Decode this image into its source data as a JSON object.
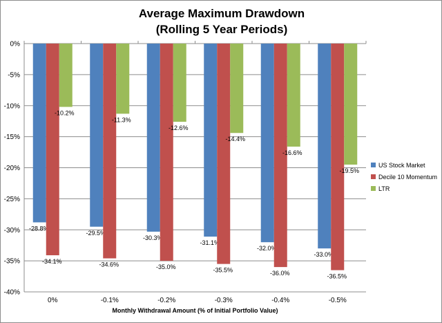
{
  "chart_data": {
    "type": "bar",
    "title": "Average Maximum Drawdown",
    "subtitle": "(Rolling 5 Year Periods)",
    "xlabel": "Monthly Withdrawal Amount (% of Initial Portfolio Value)",
    "ylabel": "",
    "categories": [
      "0%",
      "-0.1%",
      "-0.2%",
      "-0.3%",
      "-0.4%",
      "-0.5%"
    ],
    "ylim": [
      -40,
      0
    ],
    "yticks": [
      0,
      -5,
      -10,
      -15,
      -20,
      -25,
      -30,
      -35,
      -40
    ],
    "ytick_labels": [
      "0%",
      "-5%",
      "-10%",
      "-15%",
      "-20%",
      "-25%",
      "-30%",
      "-35%",
      "-40%"
    ],
    "grid": true,
    "legend_position": "right",
    "series": [
      {
        "name": "US Stock Market",
        "color": "#4f81bd",
        "values": [
          -28.8,
          -29.5,
          -30.3,
          -31.1,
          -32.0,
          -33.0
        ],
        "labels": [
          "-28.8%",
          "-29.5%",
          "-30.3%",
          "-31.1%",
          "-32.0%",
          "-33.0%"
        ]
      },
      {
        "name": "Decile 10 Momentum",
        "color": "#c0504d",
        "values": [
          -34.1,
          -34.6,
          -35.0,
          -35.5,
          -36.0,
          -36.5
        ],
        "labels": [
          "-34.1%",
          "-34.6%",
          "-35.0%",
          "-35.5%",
          "-36.0%",
          "-36.5%"
        ]
      },
      {
        "name": "LTR",
        "color": "#9bbb59",
        "values": [
          -10.2,
          -11.3,
          -12.6,
          -14.4,
          -16.6,
          -19.5
        ],
        "labels": [
          "-10.2%",
          "-11.3%",
          "-12.6%",
          "-14.4%",
          "-16.6%",
          "-19.5%"
        ]
      }
    ]
  }
}
